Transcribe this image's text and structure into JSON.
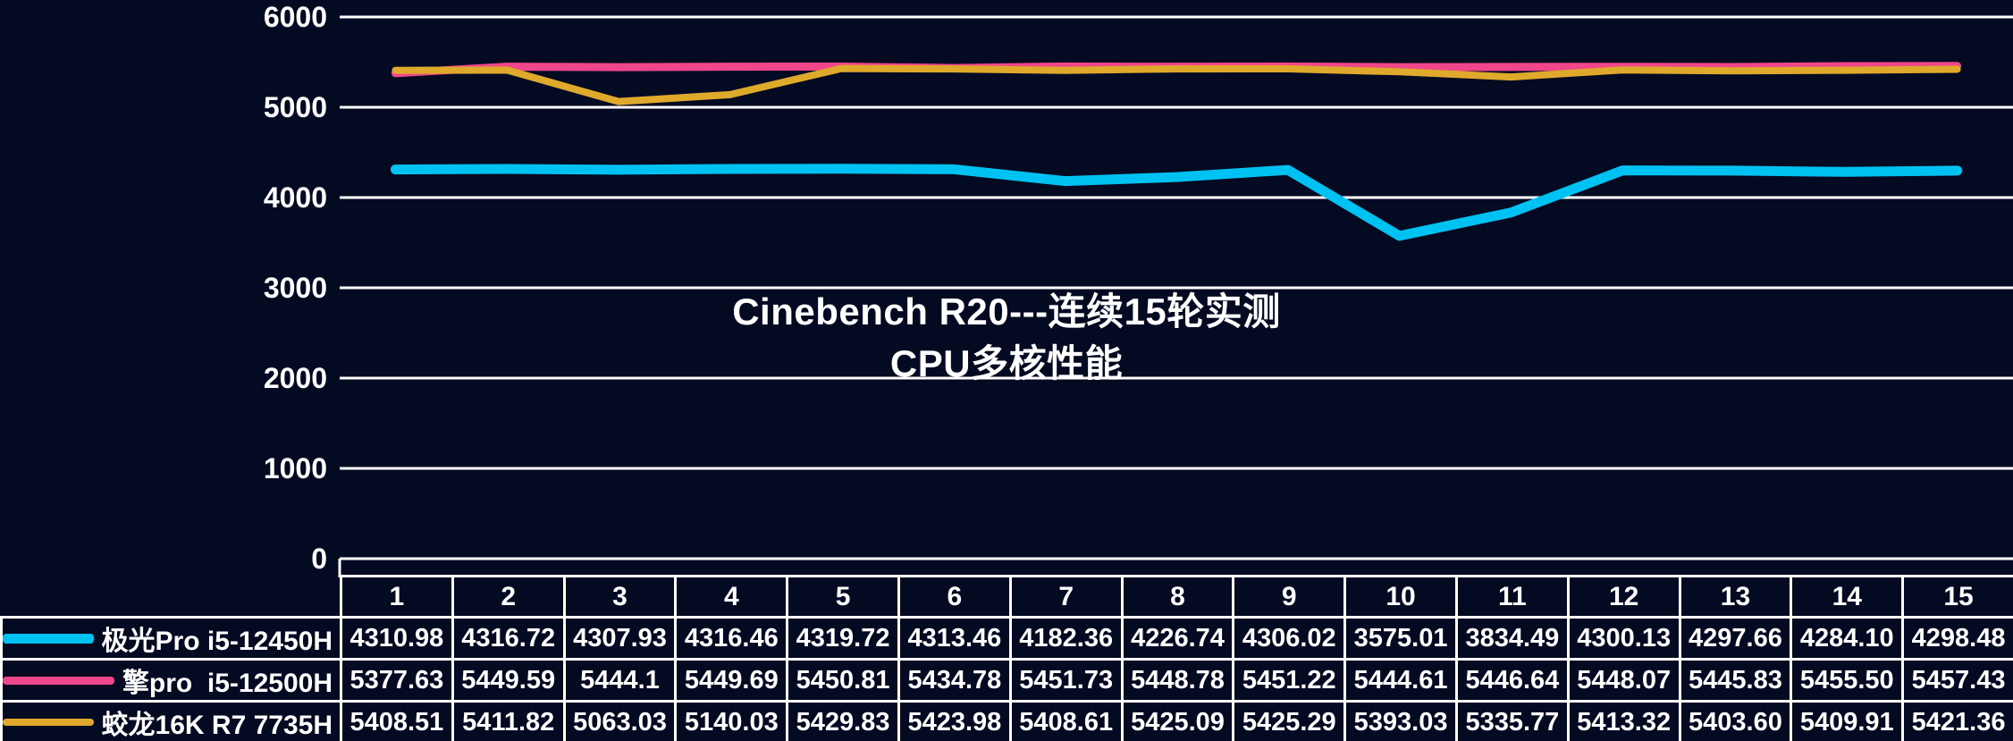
{
  "background_color": "#050a23",
  "chart_data": {
    "type": "line",
    "title_line1": "Cinebench R20---连续15轮实测",
    "title_line2": "CPU多核性能",
    "categories": [
      "1",
      "2",
      "3",
      "4",
      "5",
      "6",
      "7",
      "8",
      "9",
      "10",
      "11",
      "12",
      "13",
      "14",
      "15"
    ],
    "ylim": [
      0,
      6000
    ],
    "yticks": [
      6000,
      5000,
      4000,
      3000,
      2000,
      1000,
      0
    ],
    "grid": "horizontal",
    "legend_position": "table-left",
    "axis_color": "#ffffff",
    "series": [
      {
        "name": "极光Pro i5-12450H",
        "color": "#00c2f2",
        "stroke_width": 11,
        "values": [
          "4310.98",
          "4316.72",
          "4307.93",
          "4316.46",
          "4319.72",
          "4313.46",
          "4182.36",
          "4226.74",
          "4306.02",
          "3575.01",
          "3834.49",
          "4300.13",
          "4297.66",
          "4284.10",
          "4298.48"
        ]
      },
      {
        "name": "擎pro  i5-12500H",
        "color": "#f0478a",
        "stroke_width": 9,
        "values": [
          "5377.63",
          "5449.59",
          "5444.1",
          "5449.69",
          "5450.81",
          "5434.78",
          "5451.73",
          "5448.78",
          "5451.22",
          "5444.61",
          "5446.64",
          "5448.07",
          "5445.83",
          "5455.50",
          "5457.43"
        ]
      },
      {
        "name": "蛟龙16K R7 7735H",
        "color": "#dfa92c",
        "stroke_width": 8,
        "values": [
          "5408.51",
          "5411.82",
          "5063.03",
          "5140.03",
          "5429.83",
          "5423.98",
          "5408.61",
          "5425.09",
          "5425.29",
          "5393.03",
          "5335.77",
          "5413.32",
          "5403.60",
          "5409.91",
          "5421.36"
        ]
      }
    ]
  }
}
